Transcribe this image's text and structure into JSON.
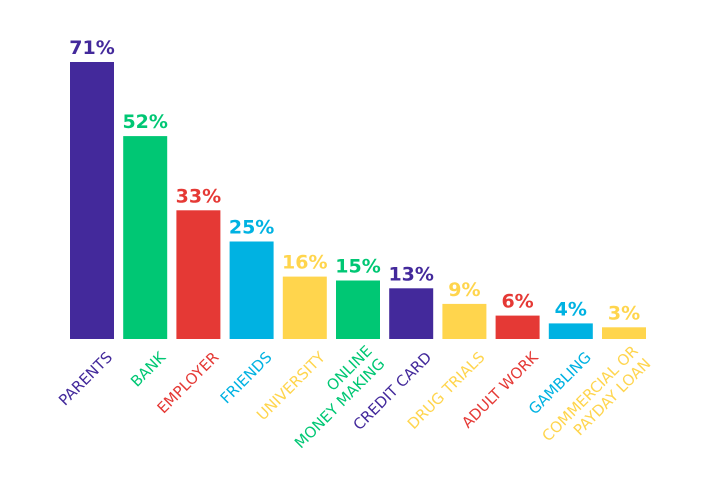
{
  "chart_data": {
    "type": "bar",
    "title": "",
    "xlabel": "",
    "ylabel": "",
    "ylim": [
      0,
      71
    ],
    "grid": false,
    "legend": "none",
    "unit": "%",
    "categories": [
      [
        "PARENTS"
      ],
      [
        "BANK"
      ],
      [
        "EMPLOYER"
      ],
      [
        "FRIENDS"
      ],
      [
        "UNIVERSITY"
      ],
      [
        "ONLINE",
        "MONEY MAKING"
      ],
      [
        "CREDIT CARD"
      ],
      [
        "DRUG TRIALS"
      ],
      [
        "ADULT WORK"
      ],
      [
        "GAMBLING"
      ],
      [
        "COMMERCIAL OR",
        "PAYDAY LOAN"
      ]
    ],
    "values": [
      71,
      52,
      33,
      25,
      16,
      15,
      13,
      9,
      6,
      4,
      3
    ],
    "value_labels": [
      "71%",
      "52%",
      "33%",
      "25%",
      "16%",
      "15%",
      "13%",
      "9%",
      "6%",
      "4%",
      "3%"
    ],
    "colors": [
      "#43299b",
      "#00c774",
      "#e53935",
      "#00b2e2",
      "#ffd54d",
      "#00c774",
      "#43299b",
      "#ffd54d",
      "#e53935",
      "#00b2e2",
      "#ffd54d"
    ]
  }
}
